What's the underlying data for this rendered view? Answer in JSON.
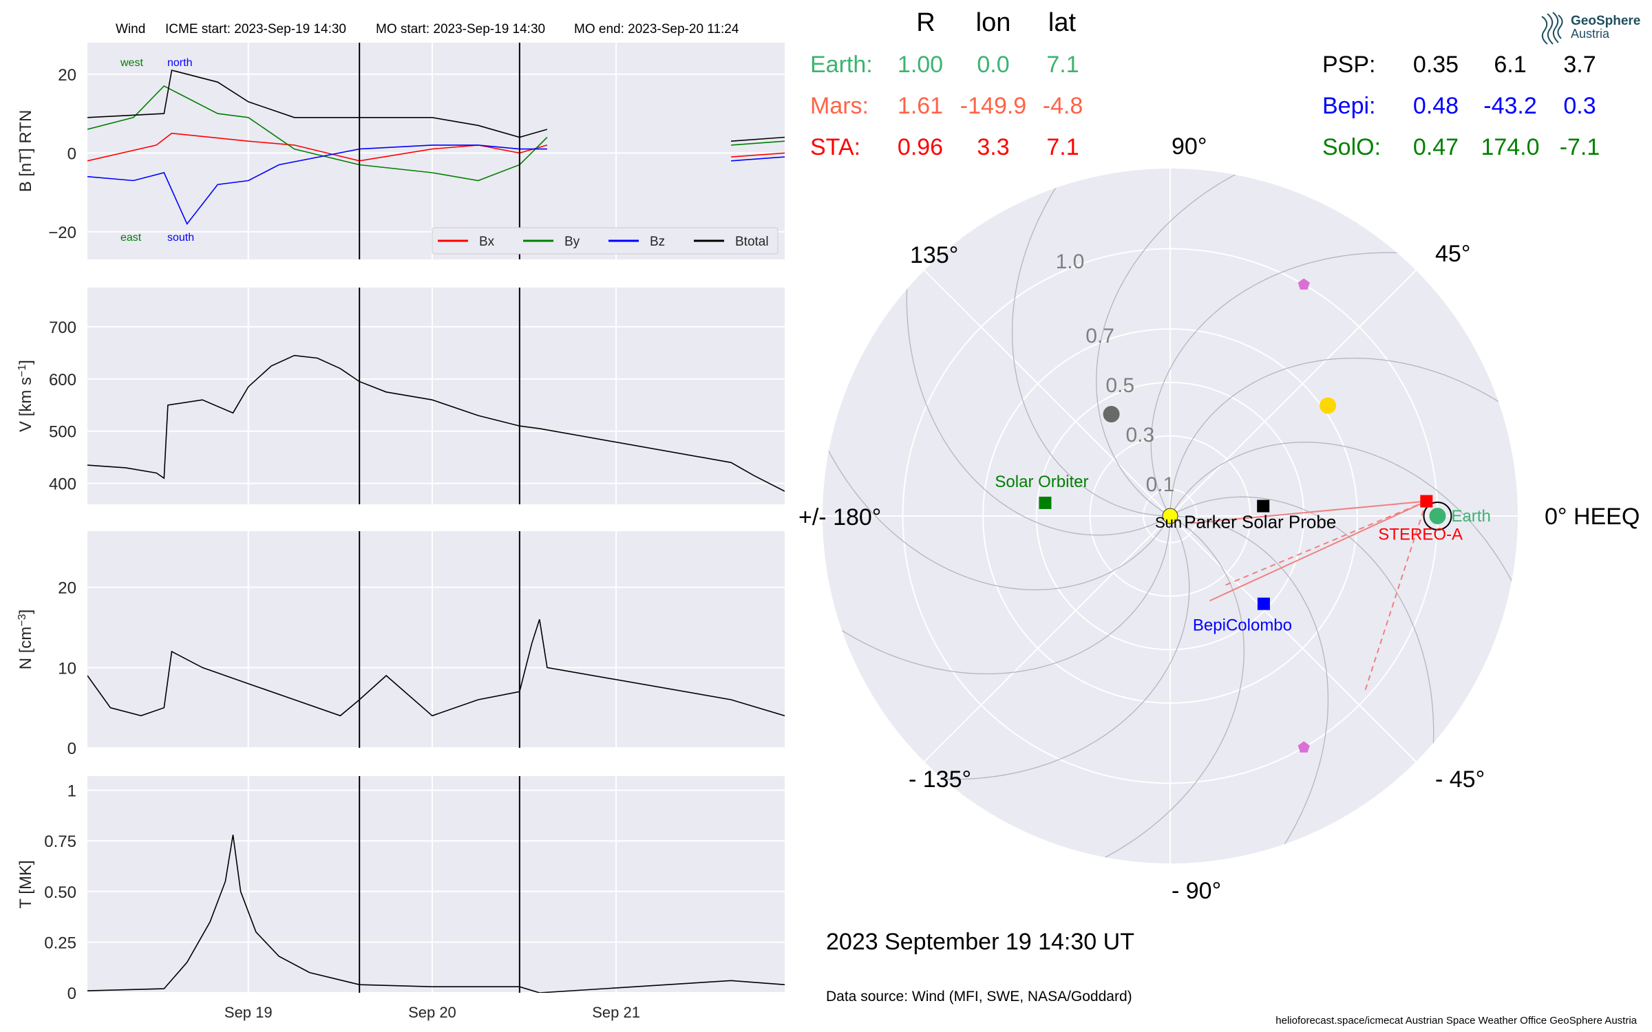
{
  "figure": {
    "header": {
      "observatory": "Wind",
      "icme_start": "ICME start: 2023-Sep-19 14:30",
      "mo_start": "MO start: 2023-Sep-19 14:30",
      "mo_end": "MO end: 2023-Sep-20 11:24"
    },
    "date_label": "2023 September 19  14:30 UT",
    "data_source": "Data source: Wind (MFI, SWE, NASA/Goddard)",
    "footer": "helioforecast.space/icmecat   Austrian Space Weather Office   GeoSphere Austria",
    "logo": {
      "name": "GeoSphere",
      "subname": "Austria",
      "icon": "geosphere-logo-icon",
      "color": "#1f4e5f"
    }
  },
  "position_table": {
    "columns": [
      "R",
      "lon",
      "lat"
    ],
    "left_rows": [
      {
        "name": "Earth:",
        "R": "1.00",
        "lon": "0.0",
        "lat": "7.1",
        "color": "#3cb371"
      },
      {
        "name": "Mars:",
        "R": "1.61",
        "lon": "-149.9",
        "lat": "-4.8",
        "color": "#ff6347"
      },
      {
        "name": "STA:",
        "R": "0.96",
        "lon": "3.3",
        "lat": "7.1",
        "color": "#ff0000"
      }
    ],
    "right_rows": [
      {
        "name": "PSP:",
        "R": "0.35",
        "lon": "6.1",
        "lat": "3.7",
        "color": "#000000"
      },
      {
        "name": "Bepi:",
        "R": "0.48",
        "lon": "-43.2",
        "lat": "0.3",
        "color": "#0000ff"
      },
      {
        "name": "SolO:",
        "R": "0.47",
        "lon": "174.0",
        "lat": "-7.1",
        "color": "#008000"
      }
    ]
  },
  "chart_data": [
    {
      "type": "line",
      "panel": "magnetic-field",
      "ylabel": "B [nT] RTN",
      "ylim": [
        -27,
        28
      ],
      "yticks": [
        -20,
        0,
        20
      ],
      "xlim": [
        "2023-09-18 03:00",
        "2023-09-21 22:00"
      ],
      "xticks": [
        {
          "t": "2023-09-19 00:00",
          "label": ""
        },
        {
          "t": "2023-09-20 00:00",
          "label": ""
        },
        {
          "t": "2023-09-21 00:00",
          "label": ""
        }
      ],
      "grid": true,
      "legend": {
        "placement": "lower-right",
        "entries": [
          "Bx",
          "By",
          "Bz",
          "Btotal"
        ]
      },
      "annotations": [
        {
          "text": "west",
          "color": "#008000"
        },
        {
          "text": "north",
          "color": "#0000ff"
        },
        {
          "text": "east",
          "color": "#008000"
        },
        {
          "text": "south",
          "color": "#0000ff"
        }
      ],
      "vlines": [
        "2023-09-19 14:30",
        "2023-09-20 11:24"
      ],
      "series": [
        {
          "name": "Bx",
          "color": "#ff0000",
          "segments": [
            [
              [
                "2023-09-18 03:00",
                -2
              ],
              [
                "2023-09-18 12:00",
                2
              ],
              [
                "2023-09-18 14:00",
                5
              ],
              [
                "2023-09-19 00:00",
                3
              ],
              [
                "2023-09-19 06:00",
                2
              ],
              [
                "2023-09-19 14:30",
                -2
              ],
              [
                "2023-09-20 00:00",
                1
              ],
              [
                "2023-09-20 06:00",
                2
              ],
              [
                "2023-09-20 11:24",
                0
              ],
              [
                "2023-09-20 15:00",
                2
              ]
            ],
            [
              [
                "2023-09-21 15:00",
                -1
              ],
              [
                "2023-09-21 22:00",
                0
              ]
            ]
          ]
        },
        {
          "name": "By",
          "color": "#008000",
          "segments": [
            [
              [
                "2023-09-18 03:00",
                6
              ],
              [
                "2023-09-18 09:00",
                9
              ],
              [
                "2023-09-18 13:00",
                17
              ],
              [
                "2023-09-18 20:00",
                10
              ],
              [
                "2023-09-19 00:00",
                9
              ],
              [
                "2023-09-19 06:00",
                1
              ],
              [
                "2023-09-19 14:30",
                -3
              ],
              [
                "2023-09-20 00:00",
                -5
              ],
              [
                "2023-09-20 06:00",
                -7
              ],
              [
                "2023-09-20 11:24",
                -3
              ],
              [
                "2023-09-20 15:00",
                4
              ]
            ],
            [
              [
                "2023-09-21 15:00",
                2
              ],
              [
                "2023-09-21 22:00",
                3
              ]
            ]
          ]
        },
        {
          "name": "Bz",
          "color": "#0000ff",
          "segments": [
            [
              [
                "2023-09-18 03:00",
                -6
              ],
              [
                "2023-09-18 09:00",
                -7
              ],
              [
                "2023-09-18 13:00",
                -5
              ],
              [
                "2023-09-18 16:00",
                -18
              ],
              [
                "2023-09-18 20:00",
                -8
              ],
              [
                "2023-09-19 00:00",
                -7
              ],
              [
                "2023-09-19 04:00",
                -3
              ],
              [
                "2023-09-19 14:30",
                1
              ],
              [
                "2023-09-20 00:00",
                2
              ],
              [
                "2023-09-20 06:00",
                2
              ],
              [
                "2023-09-20 11:24",
                1
              ],
              [
                "2023-09-20 15:00",
                1
              ]
            ],
            [
              [
                "2023-09-21 15:00",
                -2
              ],
              [
                "2023-09-21 22:00",
                -1
              ]
            ]
          ]
        },
        {
          "name": "Btotal",
          "color": "#000000",
          "segments": [
            [
              [
                "2023-09-18 03:00",
                9
              ],
              [
                "2023-09-18 13:00",
                10
              ],
              [
                "2023-09-18 14:00",
                21
              ],
              [
                "2023-09-18 20:00",
                18
              ],
              [
                "2023-09-19 00:00",
                13
              ],
              [
                "2023-09-19 06:00",
                9
              ],
              [
                "2023-09-19 14:30",
                9
              ],
              [
                "2023-09-20 00:00",
                9
              ],
              [
                "2023-09-20 06:00",
                7
              ],
              [
                "2023-09-20 11:24",
                4
              ],
              [
                "2023-09-20 15:00",
                6
              ]
            ],
            [
              [
                "2023-09-21 15:00",
                3
              ],
              [
                "2023-09-21 22:00",
                4
              ]
            ]
          ]
        }
      ]
    },
    {
      "type": "line",
      "panel": "speed",
      "ylabel": "V [km s^-1]",
      "ylim": [
        360,
        775
      ],
      "yticks": [
        400,
        500,
        600,
        700
      ],
      "xlim": [
        "2023-09-18 03:00",
        "2023-09-21 22:00"
      ],
      "xticks": [
        {
          "t": "2023-09-19 00:00",
          "label": ""
        },
        {
          "t": "2023-09-20 00:00",
          "label": ""
        },
        {
          "t": "2023-09-21 00:00",
          "label": ""
        }
      ],
      "grid": true,
      "vlines": [
        "2023-09-19 14:30",
        "2023-09-20 11:24"
      ],
      "series": [
        {
          "name": "V",
          "color": "#000000",
          "segments": [
            [
              [
                "2023-09-18 03:00",
                435
              ],
              [
                "2023-09-18 08:00",
                430
              ],
              [
                "2023-09-18 12:00",
                420
              ],
              [
                "2023-09-18 13:00",
                410
              ],
              [
                "2023-09-18 13:30",
                550
              ],
              [
                "2023-09-18 18:00",
                560
              ],
              [
                "2023-09-18 22:00",
                535
              ],
              [
                "2023-09-19 00:00",
                585
              ],
              [
                "2023-09-19 03:00",
                625
              ],
              [
                "2023-09-19 06:00",
                645
              ],
              [
                "2023-09-19 09:00",
                640
              ],
              [
                "2023-09-19 12:00",
                620
              ],
              [
                "2023-09-19 14:30",
                595
              ],
              [
                "2023-09-19 18:00",
                575
              ],
              [
                "2023-09-20 00:00",
                560
              ],
              [
                "2023-09-20 06:00",
                530
              ],
              [
                "2023-09-20 11:24",
                510
              ],
              [
                "2023-09-20 14:00",
                505
              ],
              [
                "2023-09-21 15:00",
                440
              ],
              [
                "2023-09-21 18:00",
                415
              ],
              [
                "2023-09-21 22:00",
                385
              ]
            ]
          ]
        }
      ]
    },
    {
      "type": "line",
      "panel": "density",
      "ylabel": "N [cm^-3]",
      "ylim": [
        0,
        27
      ],
      "yticks": [
        0,
        10,
        20
      ],
      "xlim": [
        "2023-09-18 03:00",
        "2023-09-21 22:00"
      ],
      "xticks": [
        {
          "t": "2023-09-19 00:00",
          "label": ""
        },
        {
          "t": "2023-09-20 00:00",
          "label": ""
        },
        {
          "t": "2023-09-21 00:00",
          "label": ""
        }
      ],
      "grid": true,
      "vlines": [
        "2023-09-19 14:30",
        "2023-09-20 11:24"
      ],
      "series": [
        {
          "name": "N",
          "color": "#000000",
          "segments": [
            [
              [
                "2023-09-18 03:00",
                9
              ],
              [
                "2023-09-18 06:00",
                5
              ],
              [
                "2023-09-18 10:00",
                4
              ],
              [
                "2023-09-18 13:00",
                5
              ],
              [
                "2023-09-18 14:00",
                12
              ],
              [
                "2023-09-18 18:00",
                10
              ],
              [
                "2023-09-19 00:00",
                8
              ],
              [
                "2023-09-19 06:00",
                6
              ],
              [
                "2023-09-19 12:00",
                4
              ],
              [
                "2023-09-19 14:30",
                6
              ],
              [
                "2023-09-19 18:00",
                9
              ],
              [
                "2023-09-20 00:00",
                4
              ],
              [
                "2023-09-20 06:00",
                6
              ],
              [
                "2023-09-20 11:24",
                7
              ],
              [
                "2023-09-20 13:00",
                13
              ],
              [
                "2023-09-20 14:00",
                16
              ],
              [
                "2023-09-20 15:00",
                10
              ],
              [
                "2023-09-21 15:00",
                6
              ],
              [
                "2023-09-21 22:00",
                4
              ]
            ]
          ]
        }
      ]
    },
    {
      "type": "line",
      "panel": "temperature",
      "ylabel": "T [MK]",
      "ylim": [
        0,
        1.07
      ],
      "yticks": [
        0.0,
        0.25,
        0.5,
        0.75,
        1.0
      ],
      "xlim": [
        "2023-09-18 03:00",
        "2023-09-21 22:00"
      ],
      "xticks": [
        {
          "t": "2023-09-19 00:00",
          "label": "Sep 19"
        },
        {
          "t": "2023-09-20 00:00",
          "label": "Sep 20"
        },
        {
          "t": "2023-09-21 00:00",
          "label": "Sep 21"
        }
      ],
      "grid": true,
      "vlines": [
        "2023-09-19 14:30",
        "2023-09-20 11:24"
      ],
      "series": [
        {
          "name": "T",
          "color": "#000000",
          "segments": [
            [
              [
                "2023-09-18 03:00",
                0.01
              ],
              [
                "2023-09-18 13:00",
                0.02
              ],
              [
                "2023-09-18 16:00",
                0.15
              ],
              [
                "2023-09-18 19:00",
                0.35
              ],
              [
                "2023-09-18 21:00",
                0.55
              ],
              [
                "2023-09-18 22:00",
                0.78
              ],
              [
                "2023-09-18 23:00",
                0.5
              ],
              [
                "2023-09-19 01:00",
                0.3
              ],
              [
                "2023-09-19 04:00",
                0.18
              ],
              [
                "2023-09-19 08:00",
                0.1
              ],
              [
                "2023-09-19 14:30",
                0.04
              ],
              [
                "2023-09-20 00:00",
                0.03
              ],
              [
                "2023-09-20 11:24",
                0.03
              ],
              [
                "2023-09-20 14:00",
                0.0
              ],
              [
                "2023-09-21 15:00",
                0.06
              ],
              [
                "2023-09-21 22:00",
                0.04
              ]
            ]
          ]
        }
      ]
    },
    {
      "type": "scatter",
      "panel": "polar-position-plot",
      "projection": "polar",
      "coordinate_label": "0° HEEQ",
      "rlim": [
        0,
        1.3
      ],
      "rticks": [
        {
          "r": 0.1,
          "label": "0.1"
        },
        {
          "r": 0.3,
          "label": "0.3"
        },
        {
          "r": 0.5,
          "label": "0.5"
        },
        {
          "r": 0.7,
          "label": "0.7"
        },
        {
          "r": 1.0,
          "label": "1.0"
        }
      ],
      "angle_labels": [
        {
          "deg": 0,
          "label": "0° HEEQ"
        },
        {
          "deg": 45,
          "label": "45°"
        },
        {
          "deg": 90,
          "label": "90°"
        },
        {
          "deg": 135,
          "label": "135°"
        },
        {
          "deg": 180,
          "label": "+/- 180°"
        },
        {
          "deg": -135,
          "label": "- 135°"
        },
        {
          "deg": -90,
          "label": "- 90°"
        },
        {
          "deg": -45,
          "label": "- 45°"
        }
      ],
      "grid": true,
      "objects": [
        {
          "name": "Sun",
          "label": "Sun",
          "r": 0.0,
          "lon": 0.0,
          "marker": "circle",
          "color": "#ffff00"
        },
        {
          "name": "Earth",
          "label": "Earth",
          "r": 1.0,
          "lon": 0.0,
          "marker": "circle",
          "color": "#3cb371"
        },
        {
          "name": "STEREO-A",
          "label": "STEREO-A",
          "r": 0.96,
          "lon": 3.3,
          "marker": "square",
          "color": "#ff0000"
        },
        {
          "name": "Parker Solar Probe",
          "label": "Parker Solar Probe",
          "r": 0.35,
          "lon": 6.1,
          "marker": "square",
          "color": "#000000"
        },
        {
          "name": "BepiColombo",
          "label": "BepiColombo",
          "r": 0.48,
          "lon": -43.2,
          "marker": "square",
          "color": "#0000ff"
        },
        {
          "name": "Solar Orbiter",
          "label": "Solar Orbiter",
          "r": 0.47,
          "lon": 174.0,
          "marker": "square",
          "color": "#008000"
        },
        {
          "name": "Mercury",
          "label": "",
          "r": 0.44,
          "lon": 120.0,
          "marker": "circle",
          "color": "#696969"
        },
        {
          "name": "Venus",
          "label": "",
          "r": 0.72,
          "lon": 35.0,
          "marker": "circle",
          "color": "#ffd700"
        },
        {
          "name": "L4 point",
          "label": "",
          "r": 1.0,
          "lon": 60.0,
          "marker": "pentagon",
          "color": "#da70d6"
        },
        {
          "name": "L5 point",
          "label": "",
          "r": 1.0,
          "lon": -60.0,
          "marker": "pentagon",
          "color": "#da70d6"
        }
      ],
      "spiral_lines": 12,
      "sta_field_lines": true
    }
  ]
}
